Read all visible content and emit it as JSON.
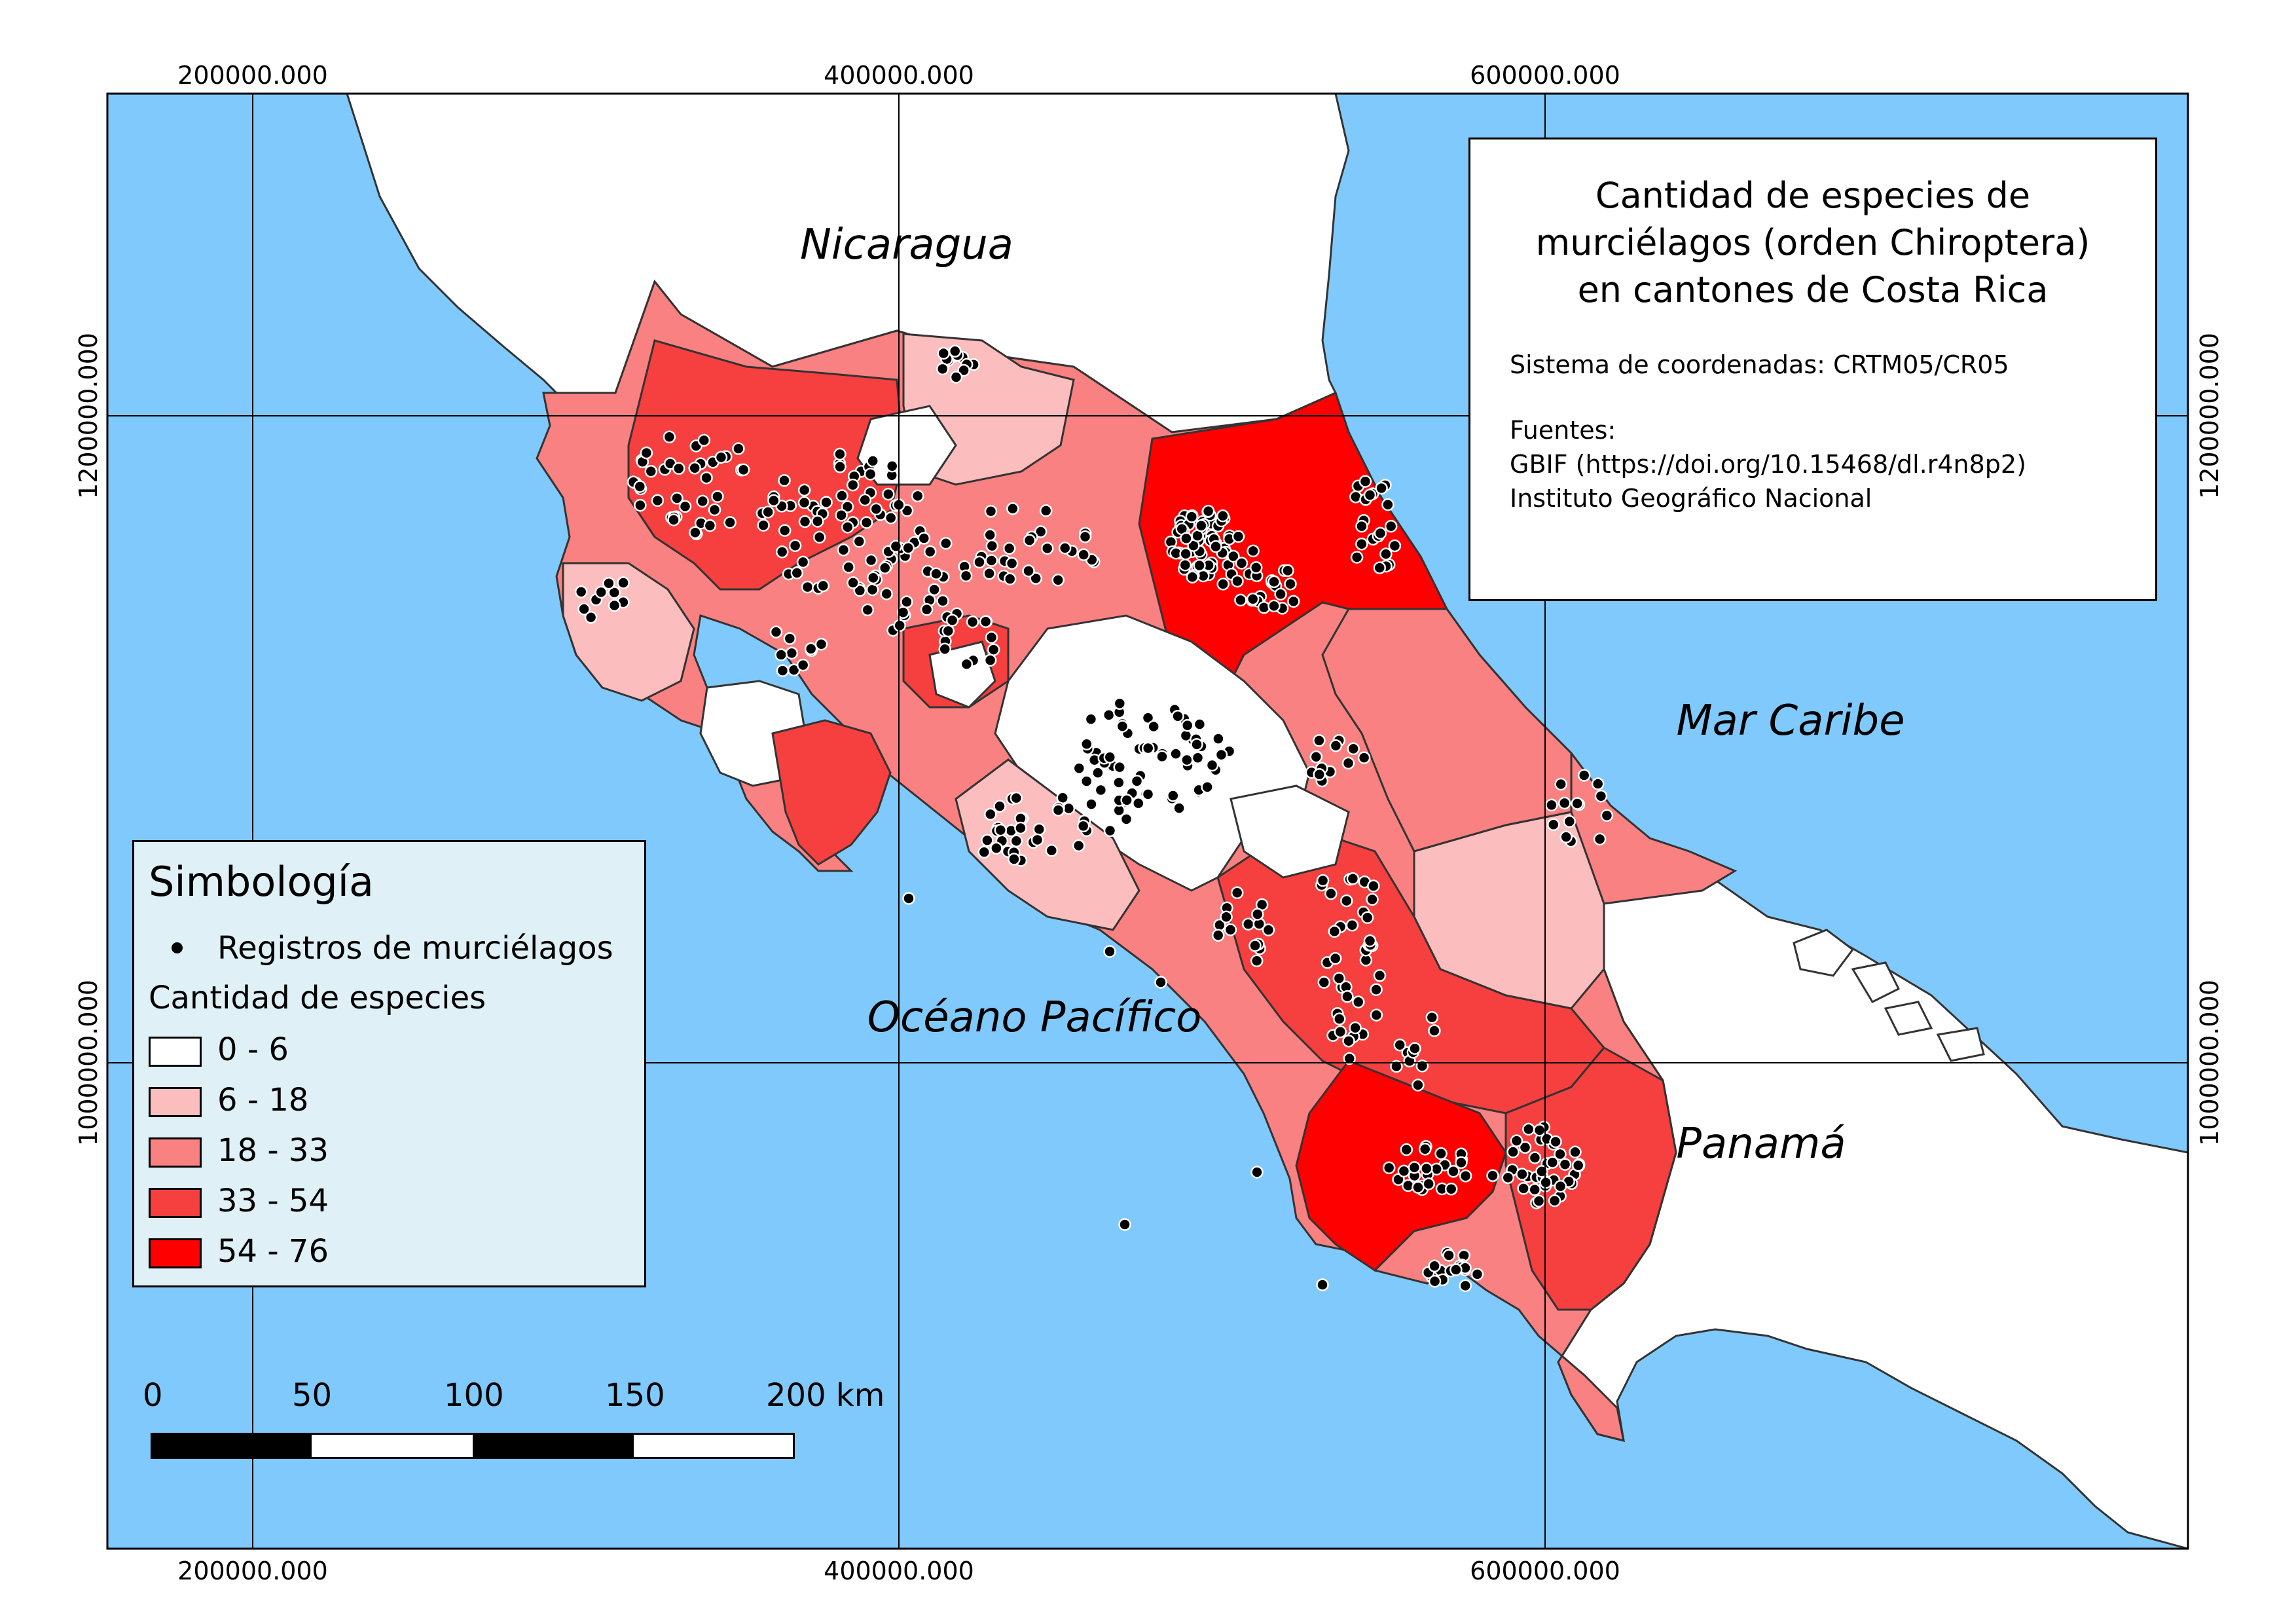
{
  "map": {
    "title": "Cantidad de especies de murciélagos (orden Chiroptera) en cantones de Costa Rica",
    "title_lines": [
      "Cantidad de especies de",
      "murciélagos (orden Chiroptera)",
      "en cantones de Costa Rica"
    ],
    "crs_text": "Sistema de coordenadas: CRTM05/CR05",
    "sources_header": "Fuentes:",
    "sources": [
      "GBIF (https://doi.org/10.15468/dl.r4n8p2)",
      "Instituto Geográfico Nacional"
    ],
    "colors": {
      "water": "#80c9fc",
      "land": "#ffffff",
      "class_0_6": "#ffffff",
      "class_6_18": "#fbbdbd",
      "class_18_33": "#f98181",
      "class_33_54": "#f63f3f",
      "class_54_76": "#ff0000",
      "record_dot": "#000000"
    },
    "place_labels": {
      "nicaragua": "Nicaragua",
      "caribbean": "Mar Caribe",
      "pacific": "Océano Pacífico",
      "panama": "Panamá"
    },
    "grid": {
      "x_labels_top": [
        "200000.000",
        "400000.000",
        "600000.000"
      ],
      "x_labels_bottom": [
        "200000.000",
        "400000.000",
        "600000.000"
      ],
      "y_labels_left": [
        "1200000.000",
        "1000000.000"
      ],
      "y_labels_right": [
        "1200000.000",
        "1000000.000"
      ]
    }
  },
  "legend": {
    "title": "Simbología",
    "records_label": "Registros de murciélagos",
    "classes_title": "Cantidad de especies",
    "classes": [
      {
        "label": "0 - 6",
        "color": "#ffffff"
      },
      {
        "label": "6 - 18",
        "color": "#fbbdbd"
      },
      {
        "label": "18 - 33",
        "color": "#f98181"
      },
      {
        "label": "33 - 54",
        "color": "#f63f3f"
      },
      {
        "label": "54 - 76",
        "color": "#ff0000"
      }
    ]
  },
  "scale_bar": {
    "labels": [
      "0",
      "50",
      "100",
      "150",
      "200 km"
    ],
    "unit": "km"
  }
}
